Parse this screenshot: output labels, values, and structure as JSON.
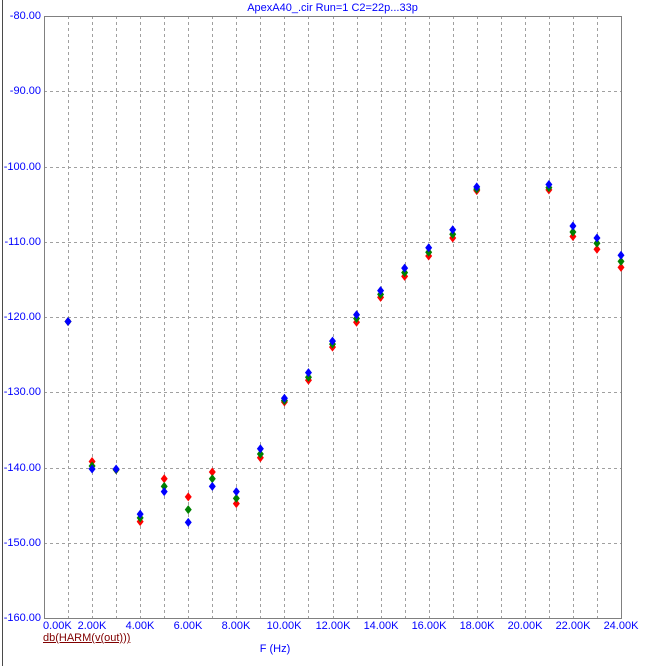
{
  "title": "ApexA40_.cir Run=1 C2=22p...33p",
  "x_axis_label": "F (Hz)",
  "trace_expression": "db(HARM(v(out)))",
  "colors": {
    "text_blue": "#0000ff",
    "trace_label_maroon": "#800000",
    "grid": "#a0a0a0",
    "border": "#808080",
    "series_red": "#ff0000",
    "series_green": "#008000",
    "series_blue": "#0000ff"
  },
  "chart_data": {
    "type": "scatter",
    "title": "ApexA40_.cir Run=1 C2=22p...33p",
    "xlabel": "F (Hz)",
    "ylabel": "db(HARM(v(out)))",
    "xlim_hz": [
      0,
      24000
    ],
    "ylim_db": [
      -160,
      -80
    ],
    "grid": true,
    "x_grid_step_hz": 1000,
    "y_grid_step_db": 10,
    "x_tick_step_hz": 2000,
    "x_tick_labels": [
      "0.00K",
      "2.00K",
      "4.00K",
      "6.00K",
      "8.00K",
      "10.00K",
      "12.00K",
      "14.00K",
      "16.00K",
      "18.00K",
      "20.00K",
      "22.00K",
      "24.00K"
    ],
    "y_tick_labels": [
      "-80.00",
      "-90.00",
      "-100.00",
      "-110.00",
      "-120.00",
      "-130.00",
      "-140.00",
      "-150.00",
      "-160.00"
    ],
    "x_khz": [
      1,
      2,
      3,
      4,
      5,
      6,
      7,
      8,
      9,
      10,
      11,
      12,
      13,
      14,
      15,
      16,
      17,
      18,
      19,
      20,
      21,
      22,
      23,
      24
    ],
    "series": [
      {
        "name": "red",
        "color": "#ff0000",
        "values": [
          -120.6,
          -139.2,
          -140.3,
          -147.2,
          -141.5,
          -143.9,
          -140.6,
          -144.8,
          -138.7,
          -131.3,
          -128.4,
          -124.0,
          -120.7,
          -117.4,
          -114.6,
          -111.9,
          -109.5,
          -103.2,
          null,
          null,
          -103.1,
          -109.3,
          -111.0,
          -113.4
        ]
      },
      {
        "name": "green",
        "color": "#008000",
        "values": [
          -120.6,
          -139.8,
          -140.3,
          -146.7,
          -142.5,
          -145.6,
          -141.5,
          -144.1,
          -138.2,
          -131.1,
          -128.0,
          -123.6,
          -120.2,
          -117.0,
          -114.1,
          -111.4,
          -109.0,
          -103.0,
          null,
          null,
          -102.8,
          -108.7,
          -110.2,
          -112.6
        ]
      },
      {
        "name": "blue",
        "color": "#0000ff",
        "values": [
          -120.6,
          -140.2,
          -140.2,
          -146.2,
          -143.2,
          -147.3,
          -142.5,
          -143.2,
          -137.5,
          -130.8,
          -127.4,
          -123.2,
          -119.7,
          -116.5,
          -113.5,
          -110.8,
          -108.4,
          -102.7,
          null,
          null,
          -102.4,
          -107.9,
          -109.5,
          -111.8
        ]
      }
    ]
  }
}
